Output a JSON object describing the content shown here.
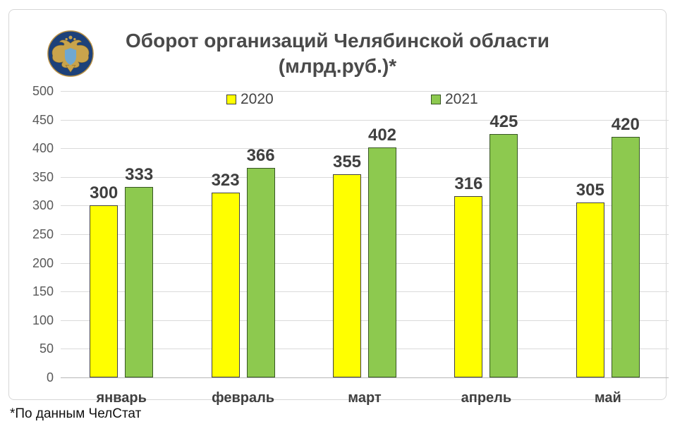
{
  "page": {
    "logo": "rosstat-emblem",
    "footnote": "*По данным ЧелСтат"
  },
  "chart_data": {
    "type": "bar",
    "title": "Оборот организаций Челябинской области",
    "subtitle": "(млрд.руб.)*",
    "categories": [
      "январь",
      "февраль",
      "март",
      "апрель",
      "май"
    ],
    "series": [
      {
        "name": "2020",
        "color": "#FFFF00",
        "border_color": "#404040",
        "values": [
          300,
          323,
          355,
          316,
          305
        ]
      },
      {
        "name": "2021",
        "color": "#8DC94F",
        "border_color": "#375623",
        "values": [
          333,
          366,
          402,
          425,
          420
        ]
      }
    ],
    "ylabel": "",
    "xlabel": "",
    "ylim": [
      0,
      500
    ],
    "ytick_step": 50,
    "grid": true,
    "gridline_color": "#dadada",
    "legend_position": "top",
    "value_labels": true
  }
}
